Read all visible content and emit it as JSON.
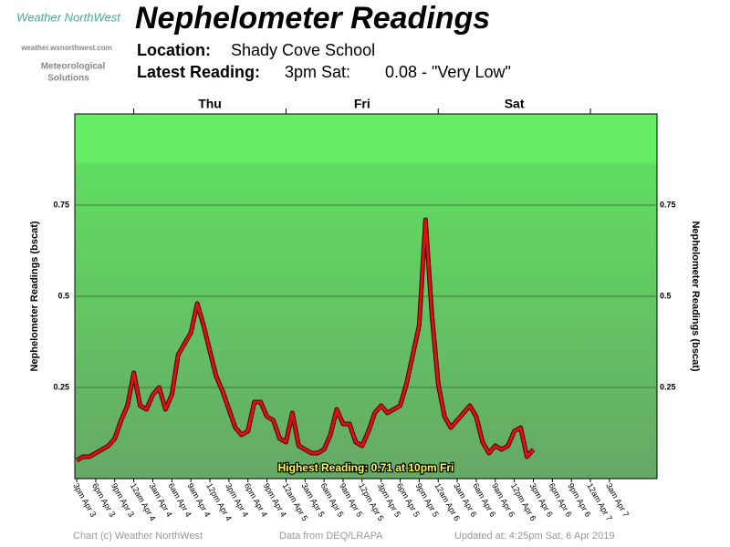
{
  "logo": {
    "name": "Weather NorthWest",
    "url": "weather.wxnorthwest.com",
    "tagline_1": "Meteorological",
    "tagline_2": "Solutions"
  },
  "header": {
    "location_label": "Location:",
    "location": "Shady Cove School",
    "latest_label": "Latest Reading:",
    "latest_time": "3pm Sat:",
    "latest_value": "0.08 - \"Very Low\""
  },
  "footer": {
    "copyright": "Chart (c) Weather NorthWest",
    "source": "Data from DEQ/LRAPA",
    "updated": "Updated at: 4:25pm Sat, 6 Apr 2019"
  },
  "chart_data": {
    "type": "line",
    "title": "Nephelometer Readings",
    "y_label": "Nephelometer Readings (bscat)",
    "annotation": "Highest Reading: 0.71 at 10pm Fri",
    "color": "#e01010",
    "x": [
      0,
      1,
      2,
      3,
      4,
      5,
      6,
      7,
      8,
      9,
      10,
      11,
      12,
      13,
      14,
      15,
      16,
      17,
      18,
      19,
      20,
      21,
      22,
      23,
      24,
      25,
      26,
      27,
      28,
      29,
      30,
      31,
      32,
      33,
      34,
      35,
      36,
      37,
      38,
      39,
      40,
      41,
      42,
      43,
      44,
      45,
      46,
      47,
      48,
      49,
      50,
      51,
      52,
      53,
      54,
      55,
      56,
      57,
      58,
      59,
      60,
      61,
      62,
      63,
      64,
      65,
      66,
      67,
      68,
      69,
      70,
      71,
      72
    ],
    "values": [
      0.05,
      0.06,
      0.06,
      0.07,
      0.08,
      0.09,
      0.11,
      0.16,
      0.2,
      0.29,
      0.2,
      0.19,
      0.23,
      0.25,
      0.19,
      0.23,
      0.34,
      0.37,
      0.4,
      0.48,
      0.42,
      0.35,
      0.28,
      0.24,
      0.19,
      0.14,
      0.12,
      0.13,
      0.21,
      0.21,
      0.17,
      0.16,
      0.11,
      0.1,
      0.18,
      0.09,
      0.08,
      0.07,
      0.07,
      0.08,
      0.12,
      0.19,
      0.15,
      0.15,
      0.1,
      0.09,
      0.13,
      0.18,
      0.2,
      0.18,
      0.19,
      0.2,
      0.26,
      0.34,
      0.42,
      0.71,
      0.45,
      0.26,
      0.17,
      0.14,
      0.16,
      0.18,
      0.2,
      0.17,
      0.1,
      0.07,
      0.09,
      0.08,
      0.09,
      0.13,
      0.14,
      0.06,
      0.08
    ],
    "xlim": [
      -0.3,
      91.5
    ],
    "xticks": [
      {
        "value": 0,
        "label": "3pm Apr 3"
      },
      {
        "value": 3,
        "label": "6pm Apr 3"
      },
      {
        "value": 6,
        "label": "9pm Apr 3"
      },
      {
        "value": 9,
        "label": "12am Apr 4"
      },
      {
        "value": 12,
        "label": "3am Apr 4"
      },
      {
        "value": 15,
        "label": "6am Apr 4"
      },
      {
        "value": 18,
        "label": "9am Apr 4"
      },
      {
        "value": 21,
        "label": "12pm Apr 4"
      },
      {
        "value": 24,
        "label": "3pm Apr 4"
      },
      {
        "value": 27,
        "label": "6pm Apr 4"
      },
      {
        "value": 30,
        "label": "9pm Apr 4"
      },
      {
        "value": 33,
        "label": "12am Apr 5"
      },
      {
        "value": 36,
        "label": "3am Apr 5"
      },
      {
        "value": 39,
        "label": "6am Apr 5"
      },
      {
        "value": 42,
        "label": "9am Apr 5"
      },
      {
        "value": 45,
        "label": "12pm Apr 5"
      },
      {
        "value": 48,
        "label": "3pm Apr 5"
      },
      {
        "value": 51,
        "label": "6pm Apr 5"
      },
      {
        "value": 54,
        "label": "9pm Apr 5"
      },
      {
        "value": 57,
        "label": "12am Apr 6"
      },
      {
        "value": 60,
        "label": "3am Apr 6"
      },
      {
        "value": 63,
        "label": "6am Apr 6"
      },
      {
        "value": 66,
        "label": "9am Apr 6"
      },
      {
        "value": 69,
        "label": "12pm Apr 6"
      },
      {
        "value": 72,
        "label": "3pm Apr 6"
      },
      {
        "value": 75,
        "label": "6pm Apr 6"
      },
      {
        "value": 78,
        "label": "9pm Apr 6"
      },
      {
        "value": 81,
        "label": "12am Apr 7"
      },
      {
        "value": 84,
        "label": "3am Apr 7"
      }
    ],
    "day_ticks": [
      9,
      33,
      57,
      81
    ],
    "day_labels": [
      {
        "value": 21,
        "label": "Thu"
      },
      {
        "value": 45,
        "label": "Fri"
      },
      {
        "value": 69,
        "label": "Sat"
      }
    ],
    "ylim": [
      0,
      1
    ],
    "yticks": [
      0.25,
      0.5,
      0.75
    ],
    "grid": true
  }
}
